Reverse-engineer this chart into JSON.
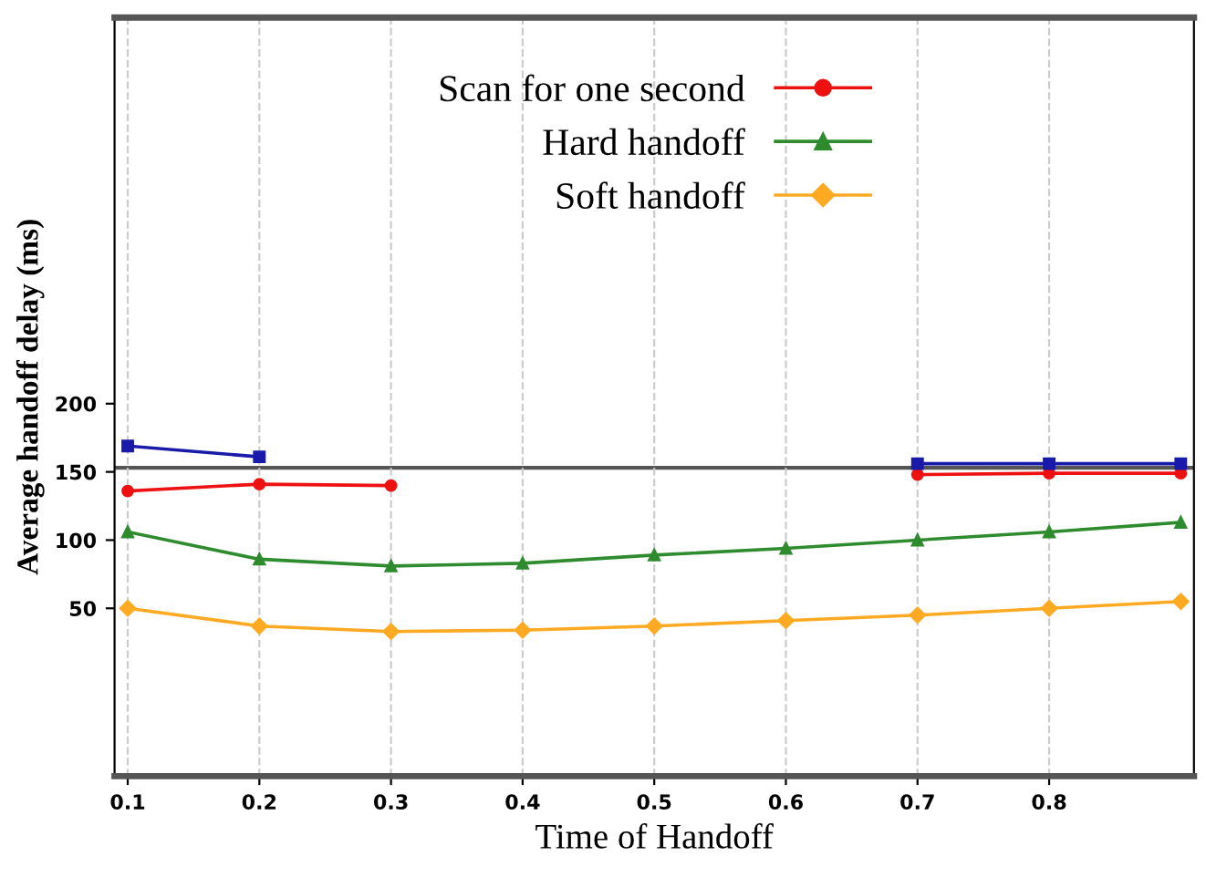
{
  "chart_data": {
    "type": "line",
    "xlabel": "Time of Handoff",
    "ylabel": "Average handoff delay (ms)",
    "x": [
      0.1,
      0.2,
      0.3,
      0.4,
      0.5,
      0.6,
      0.7,
      0.8,
      0.9
    ],
    "series": [
      {
        "name": "Scan for one second",
        "color": "#ee1111",
        "marker": "circle",
        "values": [
          136,
          141,
          140,
          null,
          null,
          null,
          148,
          149,
          149
        ]
      },
      {
        "name": "Hard handoff",
        "color": "#2e8b2e",
        "marker": "triangle",
        "values": [
          106,
          86,
          81,
          83,
          89,
          94,
          100,
          106,
          113
        ]
      },
      {
        "name": "Soft handoff",
        "color": "#ffaa22",
        "marker": "diamond",
        "values": [
          50,
          37,
          33,
          34,
          37,
          41,
          45,
          50,
          55
        ]
      },
      {
        "color": "#1a1aaa",
        "marker": "square",
        "values": [
          169,
          161,
          null,
          null,
          null,
          null,
          156,
          156,
          156
        ]
      }
    ],
    "ref_lines": [
      {
        "axis": "y",
        "value": 153,
        "color": "#555555"
      }
    ],
    "xlim": [
      0.09,
      0.91
    ],
    "ylim": [
      -73,
      483
    ],
    "xticks": [
      0.1,
      0.2,
      0.3,
      0.4,
      0.5,
      0.6,
      0.7,
      0.8
    ],
    "yticks": [
      50,
      100,
      150,
      200
    ],
    "grid": "x",
    "legend": "top",
    "line_style": "solid"
  }
}
